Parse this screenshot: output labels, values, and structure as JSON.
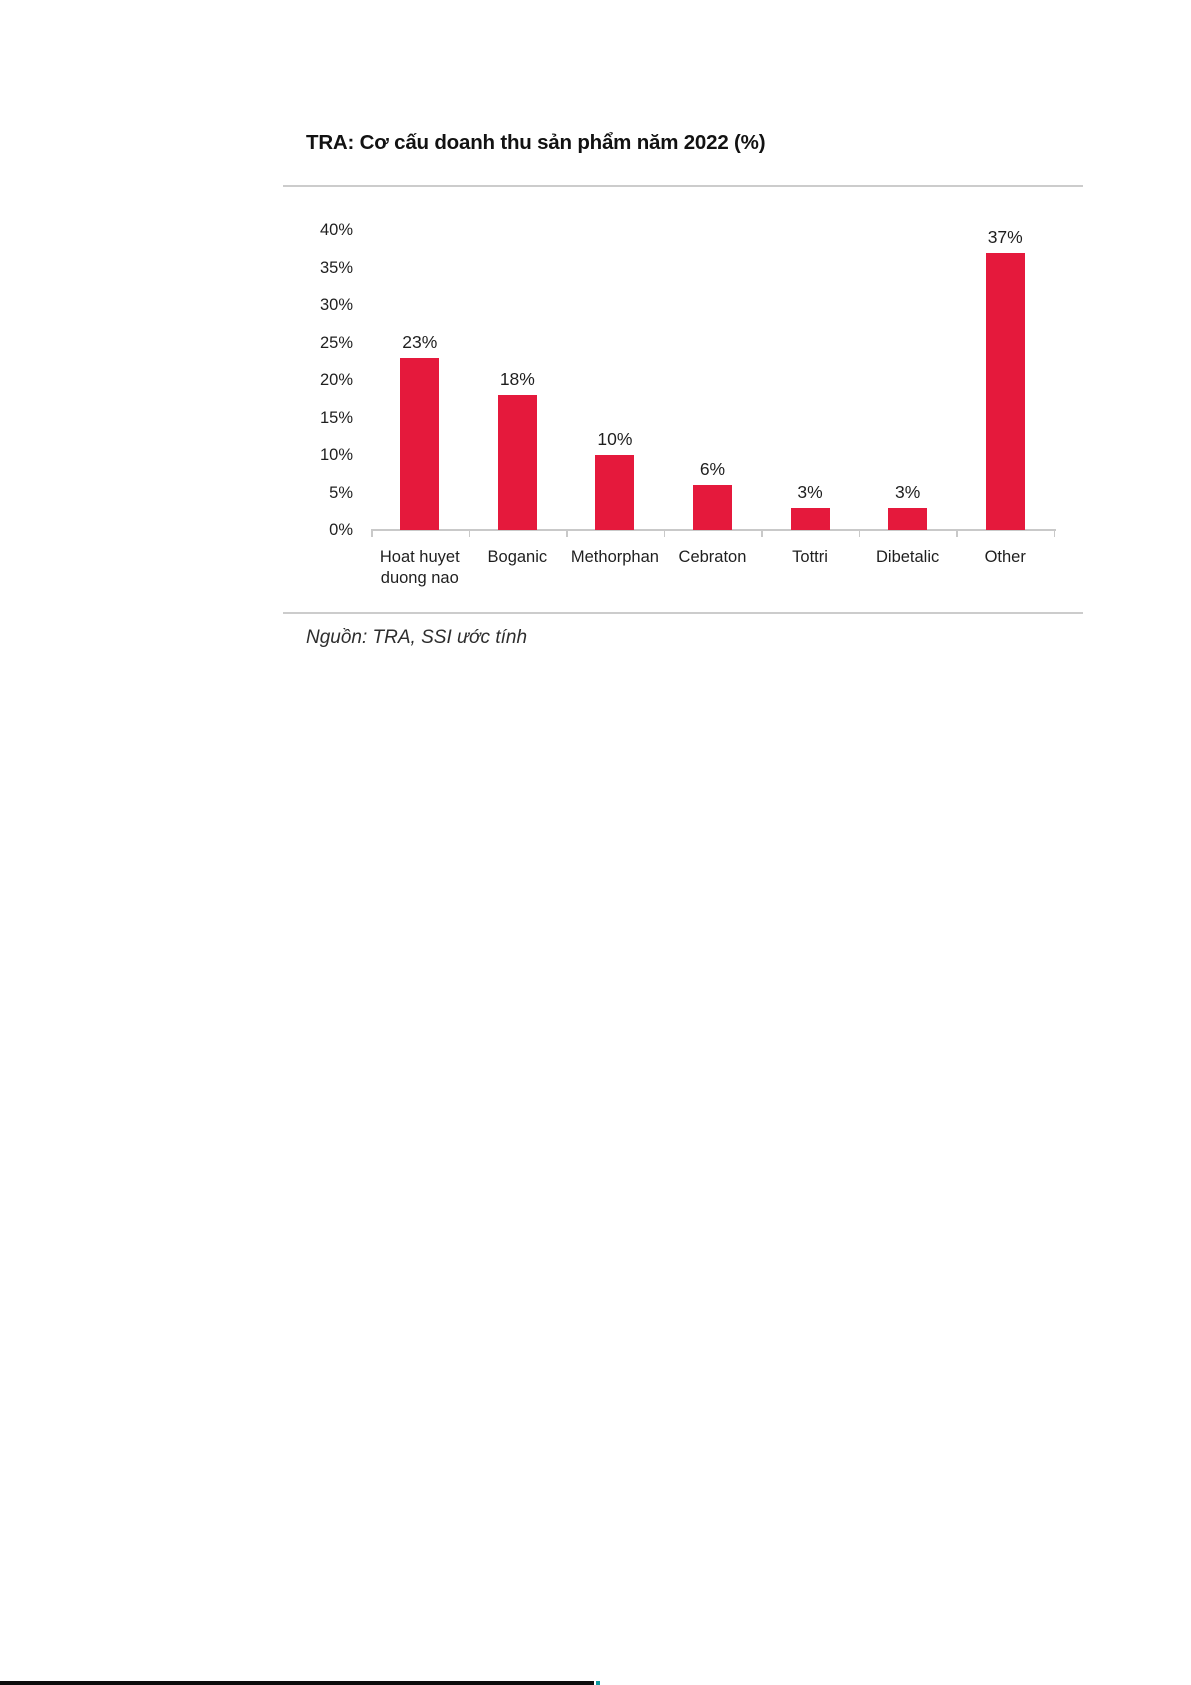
{
  "figure": {
    "title": "TRA: Cơ cấu doanh thu sản phẩm năm 2022 (%)",
    "source": "Nguồn: TRA, SSI ước tính"
  },
  "colors": {
    "bar": "#e5193c",
    "axis": "#c9c9c9",
    "panel_border": "#cccccc",
    "label_text": "#1f1f1f",
    "footer_rule": "#0c0c0c",
    "footer_accent": "#0e9aa0"
  },
  "chart_data": {
    "type": "bar",
    "title": "TRA: Cơ cấu doanh thu sản phẩm năm 2022 (%)",
    "categories": [
      "Hoat huyet duong nao",
      "Boganic",
      "Methorphan",
      "Cebraton",
      "Tottri",
      "Dibetalic",
      "Other"
    ],
    "values": [
      23,
      18,
      10,
      6,
      3,
      3,
      37
    ],
    "data_labels": [
      "23%",
      "18%",
      "10%",
      "6%",
      "3%",
      "3%",
      "37%"
    ],
    "xlabel": "",
    "ylabel": "",
    "ylim": [
      0,
      40
    ],
    "ytick_step": 5,
    "ytick_labels": [
      "0%",
      "5%",
      "10%",
      "15%",
      "20%",
      "25%",
      "30%",
      "35%",
      "40%"
    ],
    "grid": false,
    "legend": false,
    "bar_color": "#e5193c",
    "source": "Nguồn: TRA, SSI ước tính"
  }
}
